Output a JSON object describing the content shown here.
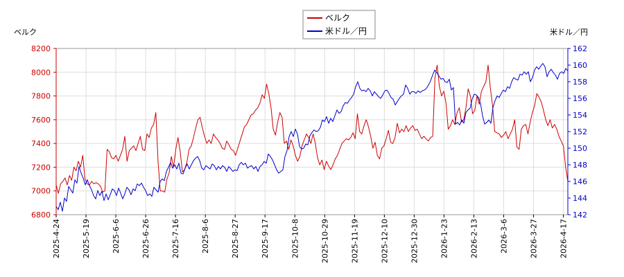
{
  "chart_data": {
    "type": "line",
    "left_axis": {
      "unit_label": "ベルク",
      "min": 6800,
      "max": 8200,
      "ticks": [
        "6800",
        "7000",
        "7200",
        "7400",
        "7600",
        "7800",
        "8000",
        "8200"
      ],
      "color": "#cc0000"
    },
    "right_axis": {
      "unit_label": "米ドル／円",
      "min": 142,
      "max": 162,
      "ticks": [
        "142",
        "144",
        "146",
        "148",
        "150",
        "152",
        "154",
        "156",
        "158",
        "160",
        "162"
      ],
      "color": "#0000cc"
    },
    "x_tick_labels": [
      "2025-4-24",
      "2025-5-19",
      "2025-6-6",
      "2025-6-26",
      "2025-7-16",
      "2025-8-6",
      "2025-8-27",
      "2025-9-17",
      "2025-10-8",
      "2025-10-29",
      "2025-11-19",
      "2025-12-10",
      "2025-12-30",
      "2026-1-23",
      "2026-2-13",
      "2026-3-6",
      "2026-3-27",
      "2026-4-17"
    ],
    "grid": true,
    "legend_position": "top-center",
    "series": [
      {
        "name": "ベルク",
        "axis": "left",
        "color": "#cc0000",
        "values": [
          7050,
          6980,
          7060,
          7080,
          7110,
          7050,
          7130,
          7090,
          7200,
          7170,
          7250,
          7200,
          7300,
          7100,
          7060,
          7050,
          7080,
          7060,
          7070,
          7060,
          7040,
          6990,
          7000,
          7350,
          7330,
          7280,
          7270,
          7300,
          7250,
          7300,
          7350,
          7460,
          7250,
          7340,
          7360,
          7380,
          7340,
          7400,
          7460,
          7350,
          7340,
          7480,
          7450,
          7530,
          7560,
          7660,
          7250,
          7000,
          7000,
          6990,
          7100,
          7150,
          7290,
          7200,
          7350,
          7450,
          7330,
          7160,
          7180,
          7240,
          7350,
          7380,
          7450,
          7530,
          7600,
          7620,
          7530,
          7460,
          7400,
          7430,
          7400,
          7480,
          7450,
          7430,
          7400,
          7360,
          7350,
          7420,
          7390,
          7350,
          7340,
          7300,
          7360,
          7420,
          7480,
          7540,
          7560,
          7600,
          7640,
          7650,
          7680,
          7700,
          7740,
          7810,
          7780,
          7900,
          7820,
          7700,
          7520,
          7470,
          7580,
          7660,
          7620,
          7400,
          7420,
          7350,
          7430,
          7380,
          7300,
          7250,
          7290,
          7380,
          7430,
          7480,
          7450,
          7400,
          7480,
          7400,
          7280,
          7220,
          7260,
          7180,
          7250,
          7210,
          7180,
          7220,
          7270,
          7300,
          7350,
          7400,
          7420,
          7440,
          7430,
          7450,
          7490,
          7440,
          7650,
          7500,
          7480,
          7550,
          7600,
          7540,
          7460,
          7360,
          7410,
          7300,
          7270,
          7360,
          7380,
          7440,
          7510,
          7410,
          7400,
          7450,
          7570,
          7490,
          7520,
          7500,
          7550,
          7500,
          7530,
          7550,
          7510,
          7520,
          7480,
          7440,
          7460,
          7440,
          7420,
          7450,
          7460,
          7950,
          8060,
          7880,
          7800,
          7840,
          7740,
          7520,
          7550,
          7600,
          7560,
          7660,
          7700,
          7580,
          7600,
          7700,
          7860,
          7800,
          7650,
          7680,
          7800,
          7730,
          7840,
          7880,
          7920,
          8060,
          7870,
          7720,
          7500,
          7490,
          7480,
          7450,
          7470,
          7500,
          7440,
          7480,
          7520,
          7600,
          7370,
          7350,
          7520,
          7550,
          7560,
          7480,
          7580,
          7660,
          7720,
          7820,
          7790,
          7750,
          7680,
          7600,
          7550,
          7600,
          7530,
          7560,
          7520,
          7460,
          7420,
          7380,
          7200,
          7080
        ]
      },
      {
        "name": "米ドル／円",
        "axis": "right",
        "color": "#0000cc",
        "values": [
          143.0,
          142.6,
          143.5,
          142.4,
          144.0,
          143.6,
          145.4,
          145.0,
          144.6,
          146.2,
          145.8,
          147.8,
          147.0,
          146.4,
          145.6,
          146.2,
          145.5,
          145.0,
          144.3,
          143.9,
          144.9,
          144.3,
          144.8,
          143.7,
          144.5,
          143.8,
          144.4,
          145.1,
          144.9,
          144.3,
          145.2,
          144.6,
          143.9,
          144.5,
          145.3,
          145.0,
          144.4,
          145.1,
          144.9,
          145.7,
          145.5,
          145.8,
          145.3,
          144.9,
          144.3,
          144.5,
          144.2,
          145.3,
          145.0,
          144.7,
          146.0,
          146.3,
          146.1,
          147.2,
          147.7,
          148.3,
          147.6,
          148.0,
          147.5,
          148.2,
          147.0,
          146.9,
          147.6,
          148.1,
          147.5,
          148.0,
          148.5,
          148.8,
          149.0,
          148.5,
          147.6,
          147.4,
          147.9,
          147.7,
          147.5,
          148.1,
          147.9,
          147.4,
          147.8,
          147.5,
          147.9,
          147.7,
          147.2,
          147.8,
          147.5,
          147.2,
          147.4,
          147.3,
          148.0,
          148.3,
          148.0,
          148.2,
          147.6,
          147.8,
          147.9,
          147.5,
          147.8,
          147.2,
          147.8,
          148.0,
          148.4,
          148.2,
          149.3,
          149.0,
          148.6,
          148.0,
          147.4,
          147.0,
          147.2,
          147.4,
          149.0,
          149.7,
          151.4,
          152.0,
          151.4,
          152.3,
          151.7,
          150.2,
          149.9,
          150.0,
          150.5,
          150.4,
          151.5,
          151.9,
          152.2,
          152.0,
          152.1,
          152.5,
          153.4,
          153.2,
          153.8,
          153.0,
          153.6,
          153.2,
          153.9,
          154.6,
          154.2,
          154.4,
          155.1,
          155.5,
          155.4,
          155.8,
          156.1,
          156.5,
          157.4,
          158.0,
          157.2,
          156.9,
          157.0,
          156.8,
          157.2,
          156.9,
          156.3,
          156.8,
          156.5,
          156.2,
          156.0,
          156.4,
          156.9,
          157.0,
          156.6,
          156.1,
          155.9,
          155.2,
          155.6,
          156.0,
          156.3,
          156.5,
          157.6,
          157.2,
          156.5,
          156.8,
          156.8,
          156.6,
          156.9,
          156.7,
          156.9,
          157.0,
          157.2,
          157.6,
          158.1,
          158.8,
          159.4,
          159.1,
          158.7,
          158.3,
          158.4,
          158.0,
          157.9,
          158.3,
          157.0,
          157.3,
          152.9,
          153.1,
          152.8,
          153.4,
          153.0,
          154.3,
          154.6,
          154.8,
          155.9,
          156.5,
          156.4,
          156.1,
          155.4,
          153.9,
          152.9,
          153.1,
          153.4,
          153.0,
          154.9,
          155.7,
          156.3,
          156.1,
          156.6,
          157.0,
          156.8,
          157.4,
          157.2,
          158.0,
          158.5,
          158.3,
          158.2,
          158.9,
          158.8,
          159.2,
          158.9,
          159.2,
          158.0,
          158.5,
          159.4,
          159.8,
          159.5,
          159.9,
          160.2,
          159.8,
          158.6,
          159.2,
          159.5,
          159.1,
          158.8,
          158.3,
          159.0,
          159.2,
          159.0,
          159.6,
          159.3
        ]
      }
    ]
  }
}
